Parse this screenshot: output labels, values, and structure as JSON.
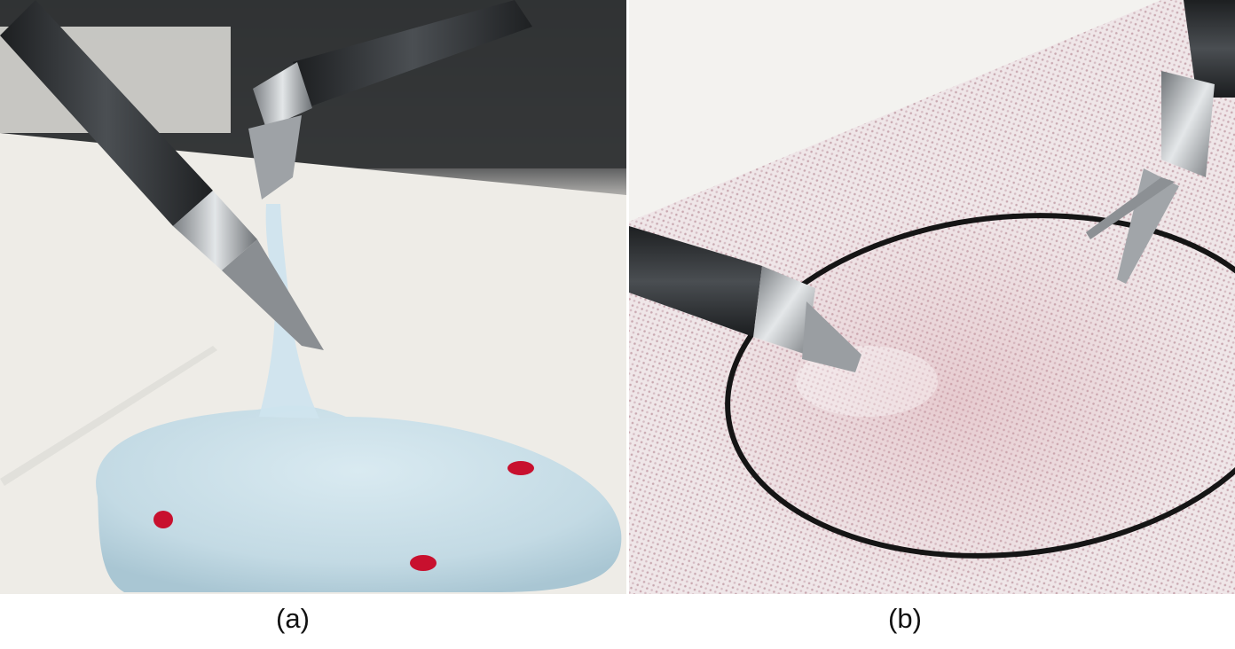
{
  "figure": {
    "panels": [
      {
        "label": "(a)",
        "colors": {
          "gel": "#c5dce6",
          "marker": "#c8102e",
          "instrument": "#2e3134",
          "background": "#ecebe6"
        }
      },
      {
        "label": "(b)",
        "colors": {
          "fabric": "#e9dde0",
          "circle": "#151515",
          "instrument": "#2a2c2f",
          "background": "#f2f1ee"
        }
      }
    ]
  }
}
